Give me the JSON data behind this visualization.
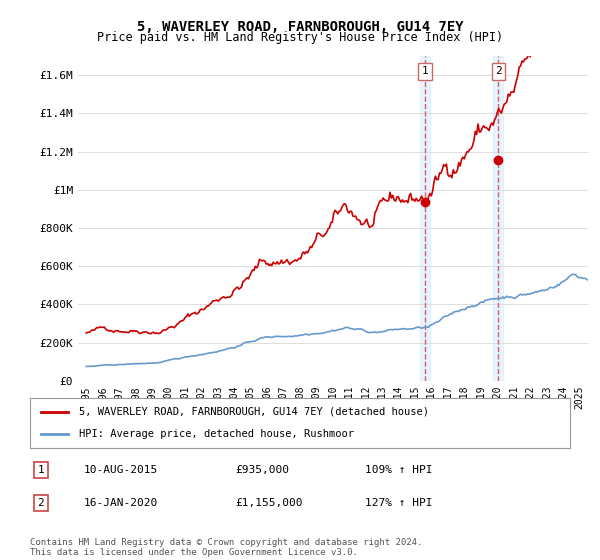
{
  "title": "5, WAVERLEY ROAD, FARNBOROUGH, GU14 7EY",
  "subtitle": "Price paid vs. HM Land Registry's House Price Index (HPI)",
  "legend_label_red": "5, WAVERLEY ROAD, FARNBOROUGH, GU14 7EY (detached house)",
  "legend_label_blue": "HPI: Average price, detached house, Rushmoor",
  "transaction1_label": "1",
  "transaction1_date": "10-AUG-2015",
  "transaction1_price": "£935,000",
  "transaction1_hpi": "109% ↑ HPI",
  "transaction2_label": "2",
  "transaction2_date": "16-JAN-2020",
  "transaction2_price": "£1,155,000",
  "transaction2_hpi": "127% ↑ HPI",
  "footer": "Contains HM Land Registry data © Crown copyright and database right 2024.\nThis data is licensed under the Open Government Licence v3.0.",
  "red_color": "#cc0000",
  "blue_color": "#6699cc",
  "marker1_color": "#cc0000",
  "marker2_color": "#cc2222",
  "vline_color": "#cc6666",
  "shadow_color": "#ddeeff",
  "grid_color": "#dddddd",
  "ylim": [
    0,
    1700000
  ],
  "xlim_start": 1995.0,
  "xlim_end": 2025.5,
  "transaction1_x": 2015.6,
  "transaction1_y": 935000,
  "transaction2_x": 2020.05,
  "transaction2_y": 1155000,
  "background_color": "#ffffff"
}
